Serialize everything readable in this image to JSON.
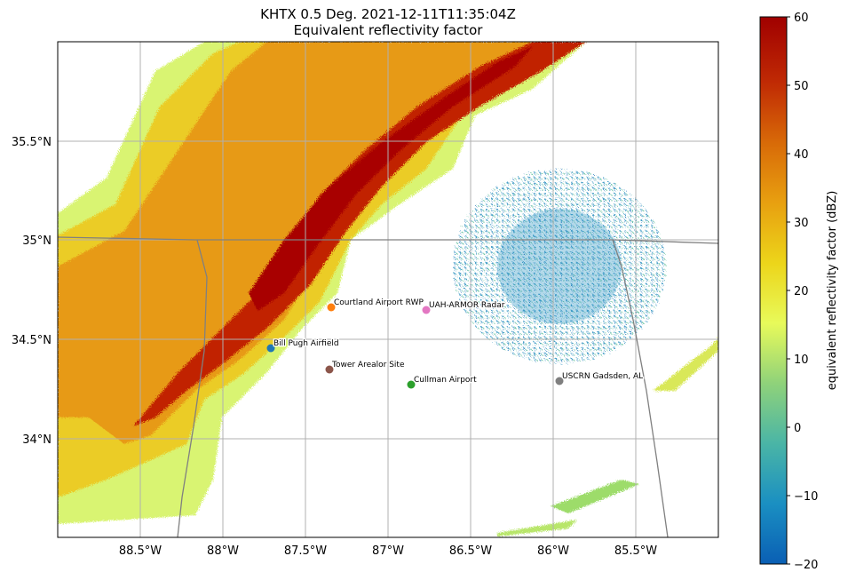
{
  "title_line1": "KHTX 0.5 Deg. 2021-12-11T11:35:04Z",
  "title_line2": "Equivalent reflectivity factor",
  "x_ticks": [
    "88.5°W",
    "88°W",
    "87.5°W",
    "87°W",
    "86.5°W",
    "86°W",
    "85.5°W"
  ],
  "y_ticks": [
    "35.5°N",
    "35°N",
    "34.5°N",
    "34°N"
  ],
  "sites": [
    {
      "name": "Courtland Airport RWP",
      "color": "#ff7f0e"
    },
    {
      "name": "UAH-ARMOR Radar",
      "color": "#e377c2"
    },
    {
      "name": "Bill Pugh Airfield",
      "color": "#1f77b4"
    },
    {
      "name": "Tower Arealor Site",
      "color": "#8c564b"
    },
    {
      "name": "Cullman Airport",
      "color": "#2ca02c"
    },
    {
      "name": "USCRN Gadsden, AL",
      "color": "#7f7f7f"
    }
  ],
  "colorbar": {
    "label": "equivalent reflectivity factor (dBZ)",
    "ticks": [
      "60",
      "50",
      "40",
      "30",
      "20",
      "10",
      "0",
      "−10",
      "−20"
    ],
    "min": -20,
    "max": 60,
    "stops": [
      "#0a5fb4",
      "#1a8fc2",
      "#4ab5a6",
      "#8fd27a",
      "#e8fa5a",
      "#ecd51a",
      "#e8a010",
      "#d86a08",
      "#c02a04",
      "#a00000"
    ]
  }
}
